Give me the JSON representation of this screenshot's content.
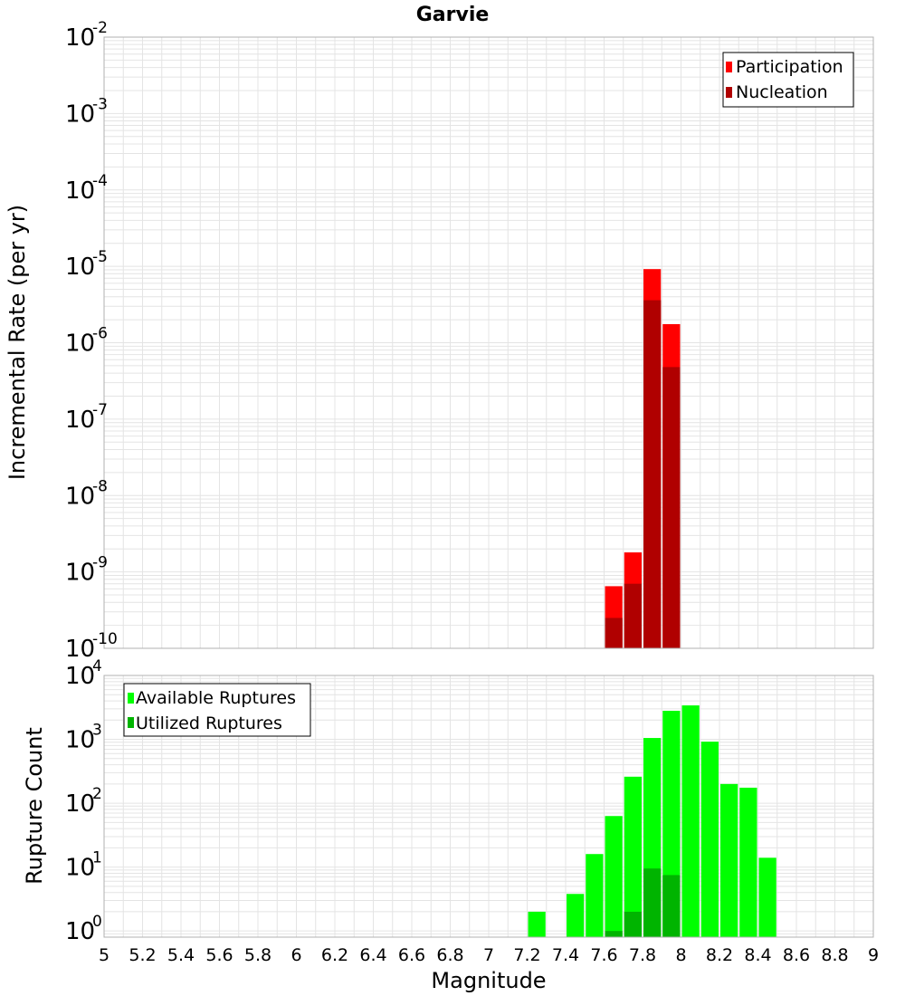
{
  "chart_data": [
    {
      "type": "bar",
      "title": "Garvie",
      "xlabel": "",
      "ylabel": "Incremental Rate (per yr)",
      "y_scale": "log",
      "ylim": [
        1e-10,
        0.01
      ],
      "xlim": [
        5,
        9
      ],
      "y_ticks": [
        {
          "base": "10",
          "exp": "-10"
        },
        {
          "base": "10",
          "exp": "-9"
        },
        {
          "base": "10",
          "exp": "-8"
        },
        {
          "base": "10",
          "exp": "-7"
        },
        {
          "base": "10",
          "exp": "-6"
        },
        {
          "base": "10",
          "exp": "-5"
        },
        {
          "base": "10",
          "exp": "-4"
        },
        {
          "base": "10",
          "exp": "-3"
        },
        {
          "base": "10",
          "exp": "-2"
        }
      ],
      "grid": true,
      "legend_position": "top-right",
      "legend": [
        {
          "label": "Participation",
          "color": "#ff0000"
        },
        {
          "label": "Nucleation",
          "color": "#b00000"
        }
      ],
      "bin_width": 0.1,
      "series": [
        {
          "name": "Participation",
          "color": "#ff0000",
          "x": [
            7.65,
            7.75,
            7.85,
            7.95
          ],
          "values": [
            6.5e-10,
            1.8e-09,
            9.2e-06,
            1.75e-06
          ]
        },
        {
          "name": "Nucleation",
          "color": "#b00000",
          "x": [
            7.65,
            7.75,
            7.85,
            7.95
          ],
          "values": [
            2.5e-10,
            7e-10,
            3.6e-06,
            4.8e-07
          ]
        }
      ]
    },
    {
      "type": "bar",
      "title": "",
      "xlabel": "Magnitude",
      "ylabel": "Rupture Count",
      "y_scale": "log",
      "ylim": [
        0.8,
        10000
      ],
      "xlim": [
        5,
        9
      ],
      "y_ticks": [
        {
          "base": "10",
          "exp": "0"
        },
        {
          "base": "10",
          "exp": "1"
        },
        {
          "base": "10",
          "exp": "2"
        },
        {
          "base": "10",
          "exp": "3"
        },
        {
          "base": "10",
          "exp": "4"
        }
      ],
      "x_ticks": [
        "5",
        "5.2",
        "5.4",
        "5.6",
        "5.8",
        "6",
        "6.2",
        "6.4",
        "6.6",
        "6.8",
        "7",
        "7.2",
        "7.4",
        "7.6",
        "7.8",
        "8",
        "8.2",
        "8.4",
        "8.6",
        "8.8",
        "9"
      ],
      "grid": true,
      "legend_position": "top-left",
      "legend": [
        {
          "label": "Available Ruptures",
          "color": "#00ff00"
        },
        {
          "label": "Utilized Ruptures",
          "color": "#00b400"
        }
      ],
      "bin_width": 0.1,
      "series": [
        {
          "name": "Available Ruptures",
          "color": "#00ff00",
          "x": [
            7.25,
            7.45,
            7.55,
            7.65,
            7.75,
            7.85,
            7.95,
            8.05,
            8.15,
            8.25,
            8.35,
            8.45
          ],
          "values": [
            2,
            3.8,
            16,
            63,
            260,
            1050,
            2800,
            3400,
            920,
            200,
            175,
            14
          ]
        },
        {
          "name": "Utilized Ruptures",
          "color": "#00b400",
          "x": [
            7.65,
            7.75,
            7.85,
            7.95
          ],
          "values": [
            1,
            2,
            9.5,
            7.5
          ]
        }
      ]
    }
  ]
}
